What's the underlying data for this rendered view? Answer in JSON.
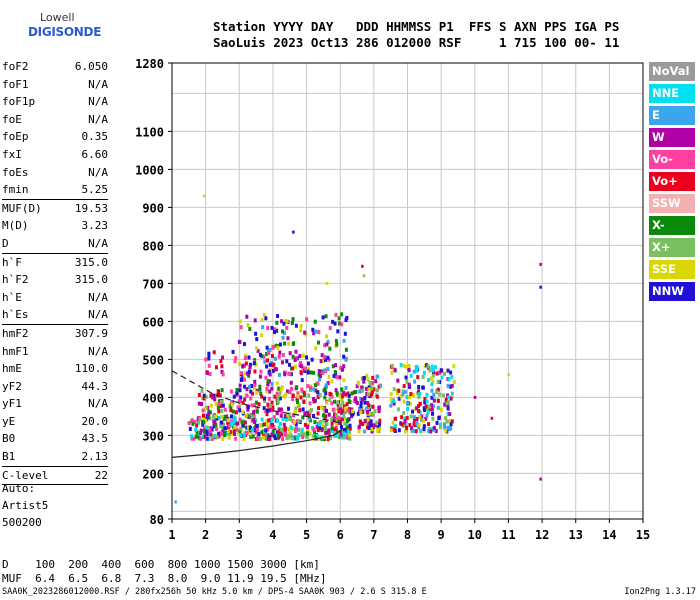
{
  "header": {
    "line1": "Station YYYY DAY   DDD HHMMSS P1  FFS S AXN PPS IGA PS",
    "line2": "SaoLuis 2023 Oct13 286 012000 RSF     1 715 100 00- 11"
  },
  "logo": {
    "line1": "Lowell",
    "line2": "DIGISONDE"
  },
  "params": [
    [
      {
        "k": "foF2",
        "v": "6.050"
      },
      {
        "k": "foF1",
        "v": "N/A"
      },
      {
        "k": "foF1p",
        "v": "N/A"
      },
      {
        "k": "foE",
        "v": "N/A"
      },
      {
        "k": "foEp",
        "v": "0.35"
      },
      {
        "k": "fxI",
        "v": "6.60"
      },
      {
        "k": "foEs",
        "v": "N/A"
      },
      {
        "k": "fmin",
        "v": "5.25"
      }
    ],
    [
      {
        "k": "MUF(D)",
        "v": "19.53"
      },
      {
        "k": "M(D)",
        "v": "3.23"
      },
      {
        "k": "D",
        "v": "N/A"
      }
    ],
    [
      {
        "k": "h`F",
        "v": "315.0"
      },
      {
        "k": "h`F2",
        "v": "315.0"
      },
      {
        "k": "h`E",
        "v": "N/A"
      },
      {
        "k": "h`Es",
        "v": "N/A"
      }
    ],
    [
      {
        "k": "hmF2",
        "v": "307.9"
      },
      {
        "k": "hmF1",
        "v": "N/A"
      },
      {
        "k": "hmE",
        "v": "110.0"
      },
      {
        "k": "yF2",
        "v": "44.3"
      },
      {
        "k": "yF1",
        "v": "N/A"
      },
      {
        "k": "yE",
        "v": "20.0"
      },
      {
        "k": "B0",
        "v": "43.5"
      },
      {
        "k": "B1",
        "v": "2.13"
      }
    ],
    [
      {
        "k": "C-level",
        "v": "22"
      }
    ]
  ],
  "auto": {
    "line1": "Auto:",
    "line2": "Artist5",
    "line3": "500200"
  },
  "footer": {
    "d_row": "D    100  200  400  600  800 1000 1500 3000 [km]",
    "muf_row": "MUF  6.4  6.5  6.8  7.3  8.0  9.0 11.9 19.5 [MHz]",
    "file_info": "SAA0K_2023286012000.RSF / 280fx256h 50 kHz 5.0 km / DPS-4 SAA0K 903 / 2.6 S 315.8 E",
    "version": "Ion2Png 1.3.17"
  },
  "legend": [
    {
      "label": "NoVal",
      "color": "#9a9a9a"
    },
    {
      "label": "NNE",
      "color": "#00e0f0"
    },
    {
      "label": "E",
      "color": "#3aa6f0"
    },
    {
      "label": "W",
      "color": "#b000a8"
    },
    {
      "label": "Vo-",
      "color": "#ff3fa0"
    },
    {
      "label": "Vo+",
      "color": "#e8001c"
    },
    {
      "label": "SSW",
      "color": "#f4b0b0"
    },
    {
      "label": "X-",
      "color": "#0a8a0a"
    },
    {
      "label": "X+",
      "color": "#78c060"
    },
    {
      "label": "SSE",
      "color": "#d8d800"
    },
    {
      "label": "NNW",
      "color": "#2010d8"
    }
  ],
  "chart_data": {
    "type": "scatter",
    "xlim": [
      1,
      15
    ],
    "ylim": [
      80,
      1280
    ],
    "x_ticks": [
      "1",
      "2",
      "3",
      "4",
      "5",
      "6",
      "7",
      "8",
      "9",
      "10",
      "11",
      "12",
      "13",
      "14",
      "15"
    ],
    "y_ticks": [
      {
        "v": 80,
        "label": "80"
      },
      {
        "v": 200,
        "label": "200"
      },
      {
        "v": 300,
        "label": "300"
      },
      {
        "v": 400,
        "label": "400"
      },
      {
        "v": 500,
        "label": "500"
      },
      {
        "v": 600,
        "label": "600"
      },
      {
        "v": 700,
        "label": "700"
      },
      {
        "v": 800,
        "label": "800"
      },
      {
        "v": 900,
        "label": "900"
      },
      {
        "v": 1000,
        "label": "1000"
      },
      {
        "v": 1100,
        "label": "1100"
      },
      {
        "v": 1280,
        "label": "1280"
      }
    ],
    "grid": true,
    "clusters": [
      {
        "x": [
          1.5,
          6.3
        ],
        "y": [
          290,
          350
        ],
        "colors": [
          "#b000a8",
          "#2010d8",
          "#d8d800",
          "#e8001c",
          "#0a8a0a",
          "#ff3fa0",
          "#78c060",
          "#00e0f0"
        ],
        "n": 420
      },
      {
        "x": [
          1.8,
          6.5
        ],
        "y": [
          350,
          420
        ],
        "colors": [
          "#b000a8",
          "#2010d8",
          "#d8d800",
          "#e8001c",
          "#0a8a0a",
          "#ff3fa0",
          "#78c060"
        ],
        "n": 260
      },
      {
        "x": [
          3.0,
          6.2
        ],
        "y": [
          420,
          620
        ],
        "colors": [
          "#b000a8",
          "#2010d8",
          "#d8d800",
          "#0a8a0a",
          "#3aa6f0",
          "#ff3fa0"
        ],
        "n": 220
      },
      {
        "x": [
          6.5,
          7.2
        ],
        "y": [
          310,
          460
        ],
        "colors": [
          "#e8001c",
          "#b000a8",
          "#78c060",
          "#2010d8",
          "#d8d800",
          "#3aa6f0"
        ],
        "n": 110
      },
      {
        "x": [
          7.5,
          9.4
        ],
        "y": [
          310,
          490
        ],
        "colors": [
          "#e8001c",
          "#b000a8",
          "#2010d8",
          "#3aa6f0",
          "#00e0f0",
          "#78c060",
          "#d8d800"
        ],
        "n": 230
      },
      {
        "x": [
          2.0,
          5.0
        ],
        "y": [
          460,
          520
        ],
        "colors": [
          "#ff3fa0",
          "#e8001c",
          "#b000a8",
          "#2010d8"
        ],
        "n": 60
      }
    ],
    "isolated_points": [
      {
        "x": 1.95,
        "y": 930,
        "color": "#d8d800"
      },
      {
        "x": 4.6,
        "y": 835,
        "color": "#2010d8"
      },
      {
        "x": 6.65,
        "y": 745,
        "color": "#e8001c"
      },
      {
        "x": 6.7,
        "y": 720,
        "color": "#78c060"
      },
      {
        "x": 11.95,
        "y": 750,
        "color": "#b000a8"
      },
      {
        "x": 11.95,
        "y": 690,
        "color": "#2010d8"
      },
      {
        "x": 11.95,
        "y": 185,
        "color": "#b000a8"
      },
      {
        "x": 11.0,
        "y": 460,
        "color": "#d8d800"
      },
      {
        "x": 10.5,
        "y": 345,
        "color": "#e8001c"
      },
      {
        "x": 10.0,
        "y": 400,
        "color": "#b000a8"
      },
      {
        "x": 5.6,
        "y": 700,
        "color": "#d8d800"
      },
      {
        "x": 1.1,
        "y": 125,
        "color": "#3aa6f0"
      }
    ],
    "trace_solid": [
      {
        "x": 1.0,
        "y": 242
      },
      {
        "x": 2.0,
        "y": 250
      },
      {
        "x": 3.0,
        "y": 260
      },
      {
        "x": 4.0,
        "y": 272
      },
      {
        "x": 5.0,
        "y": 286
      },
      {
        "x": 5.8,
        "y": 300
      },
      {
        "x": 6.05,
        "y": 315
      },
      {
        "x": 6.02,
        "y": 335
      }
    ],
    "trace_dashed": [
      {
        "x": 1.0,
        "y": 470
      },
      {
        "x": 1.6,
        "y": 440
      },
      {
        "x": 2.2,
        "y": 410
      },
      {
        "x": 3.0,
        "y": 385
      },
      {
        "x": 4.0,
        "y": 365
      },
      {
        "x": 5.0,
        "y": 350
      },
      {
        "x": 5.8,
        "y": 338
      },
      {
        "x": 6.05,
        "y": 330
      }
    ]
  }
}
